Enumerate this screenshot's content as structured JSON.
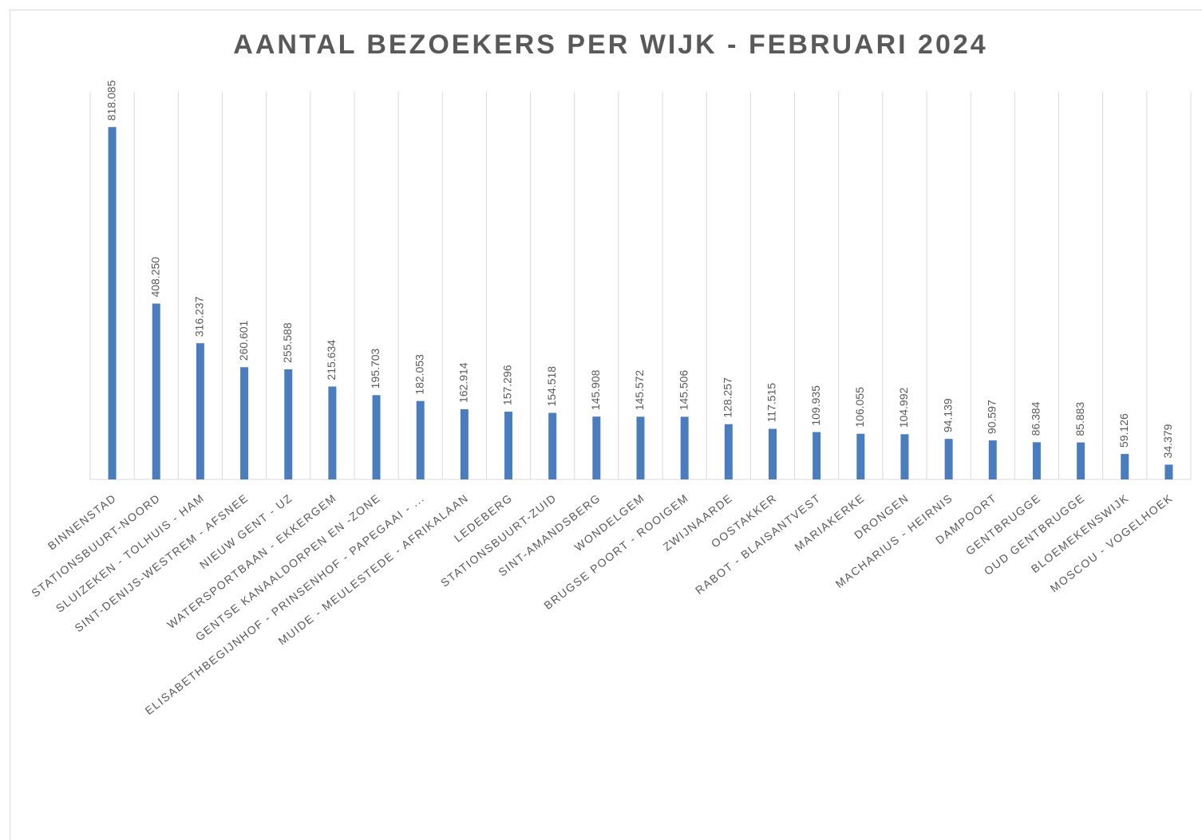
{
  "chart_data": {
    "type": "bar",
    "title": "AANTAL BEZOEKERS PER WIJK - FEBRUARI 2024",
    "categories": [
      "BINNENSTAD",
      "STATIONSBUURT-NOORD",
      "SLUIZEKEN - TOLHUIS - HAM",
      "SINT-DENIJS-WESTREM - AFSNEE",
      "NIEUW GENT - UZ",
      "WATERSPORTBAAN - EKKERGEM",
      "GENTSE KANAALDORPEN EN -ZONE",
      "ELISABETHBEGIJNHOF - PRINSENHOF - PAPEGAAI - ...",
      "MUIDE - MEULESTEDE - AFRIKALAAN",
      "LEDEBERG",
      "STATIONSBUURT-ZUID",
      "SINT-AMANDSBERG",
      "WONDELGEM",
      "BRUGSE POORT - ROOIGEM",
      "ZWIJNAARDE",
      "OOSTAKKER",
      "RABOT - BLAISANTVEST",
      "MARIAKERKE",
      "DRONGEN",
      "MACHARIUS - HEIRNIS",
      "DAMPOORT",
      "GENTBRUGGE",
      "OUD GENTBRUGGE",
      "BLOEMEKENSWIJK",
      "MOSCOU - VOGELHOEK"
    ],
    "values": [
      818085,
      408250,
      316237,
      260601,
      255588,
      215634,
      195703,
      182053,
      162914,
      157296,
      154518,
      145908,
      145572,
      145506,
      128257,
      117515,
      109935,
      106055,
      104992,
      94139,
      90597,
      86384,
      85883,
      59126,
      34379
    ],
    "value_labels": [
      "818.085",
      "408.250",
      "316.237",
      "260.601",
      "255.588",
      "215.634",
      "195.703",
      "182.053",
      "162.914",
      "157.296",
      "154.518",
      "145.908",
      "145.572",
      "145.506",
      "128.257",
      "117.515",
      "109.935",
      "106.055",
      "104.992",
      "94.139",
      "90.597",
      "86.384",
      "85.883",
      "59.126",
      "34.379"
    ],
    "color": "#4a7dbf",
    "ylim": [
      0,
      900000
    ],
    "grid": true
  }
}
